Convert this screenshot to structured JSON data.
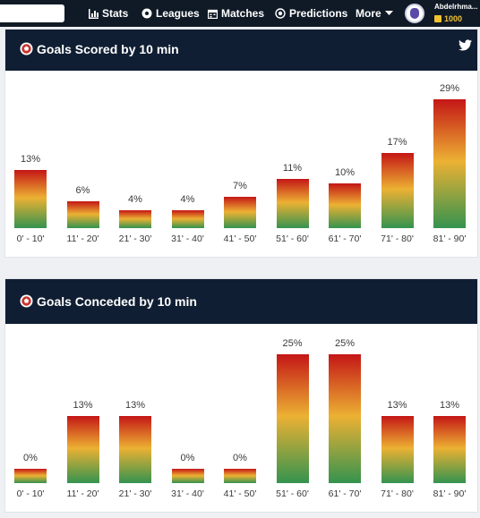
{
  "nav": {
    "items": [
      {
        "label": "Stats",
        "icon": "bar-chart-icon"
      },
      {
        "label": "Leagues",
        "icon": "soccer-ball-icon"
      },
      {
        "label": "Matches",
        "icon": "calendar-icon"
      },
      {
        "label": "Predictions",
        "icon": "target-icon"
      },
      {
        "label": "More",
        "icon": "chevron-down-icon"
      }
    ],
    "user": {
      "name": "Abdelrhma...",
      "coins": "1000"
    }
  },
  "colors": {
    "nav_bg": "#101a27",
    "header_bg": "#101e33",
    "bar_top": "#c41616",
    "bar_mid": "#ecb133",
    "bar_bottom": "#34934f",
    "coin": "#f2c230"
  },
  "panels": [
    {
      "title": "Goals Scored by 10 min",
      "share_icon": "twitter-icon"
    },
    {
      "title": "Goals Conceded by 10 min"
    }
  ],
  "chart_data": [
    {
      "type": "bar",
      "title": "Goals Scored by 10 min",
      "categories": [
        "0' - 10'",
        "11' - 20'",
        "21' - 30'",
        "31' - 40'",
        "41' - 50'",
        "51' - 60'",
        "61' - 70'",
        "71' - 80'",
        "81' - 90'"
      ],
      "values": [
        13,
        6,
        4,
        4,
        7,
        11,
        10,
        17,
        29
      ],
      "labels": [
        "13%",
        "6%",
        "4%",
        "4%",
        "7%",
        "11%",
        "10%",
        "17%",
        "29%"
      ],
      "unit": "%",
      "ylim": [
        0,
        29
      ],
      "grid": false
    },
    {
      "type": "bar",
      "title": "Goals Conceded by 10 min",
      "categories": [
        "0' - 10'",
        "11' - 20'",
        "21' - 30'",
        "31' - 40'",
        "41' - 50'",
        "51' - 60'",
        "61' - 70'",
        "71' - 80'",
        "81' - 90'"
      ],
      "values": [
        0,
        13,
        13,
        0,
        0,
        25,
        25,
        13,
        13
      ],
      "labels": [
        "0%",
        "13%",
        "13%",
        "0%",
        "0%",
        "25%",
        "25%",
        "13%",
        "13%"
      ],
      "unit": "%",
      "ylim": [
        0,
        25
      ],
      "grid": false
    }
  ]
}
